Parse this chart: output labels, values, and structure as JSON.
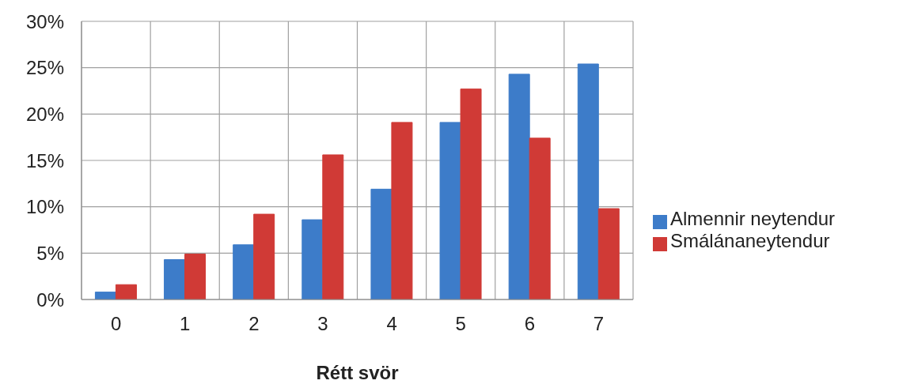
{
  "chart_data": {
    "type": "bar",
    "xlabel": "Rétt svör",
    "categories": [
      "0",
      "1",
      "2",
      "3",
      "4",
      "5",
      "6",
      "7"
    ],
    "series": [
      {
        "name": "Almennir neytendur",
        "color": "#3d7cc9",
        "values": [
          0.8,
          4.3,
          5.9,
          8.6,
          11.9,
          19.1,
          24.3,
          25.4
        ]
      },
      {
        "name": "Smálánaneytendur",
        "color": "#d03a36",
        "values": [
          1.6,
          4.9,
          9.2,
          15.6,
          19.1,
          22.7,
          17.4,
          9.8
        ]
      }
    ],
    "ylim": [
      0,
      30
    ],
    "yticks": [
      {
        "value": 0,
        "label": "0%"
      },
      {
        "value": 5,
        "label": "5%"
      },
      {
        "value": 10,
        "label": "10%"
      },
      {
        "value": 15,
        "label": "15%"
      },
      {
        "value": 20,
        "label": "20%"
      },
      {
        "value": 25,
        "label": "25%"
      },
      {
        "value": 30,
        "label": "30%"
      }
    ],
    "grid": true,
    "legend": "right"
  }
}
